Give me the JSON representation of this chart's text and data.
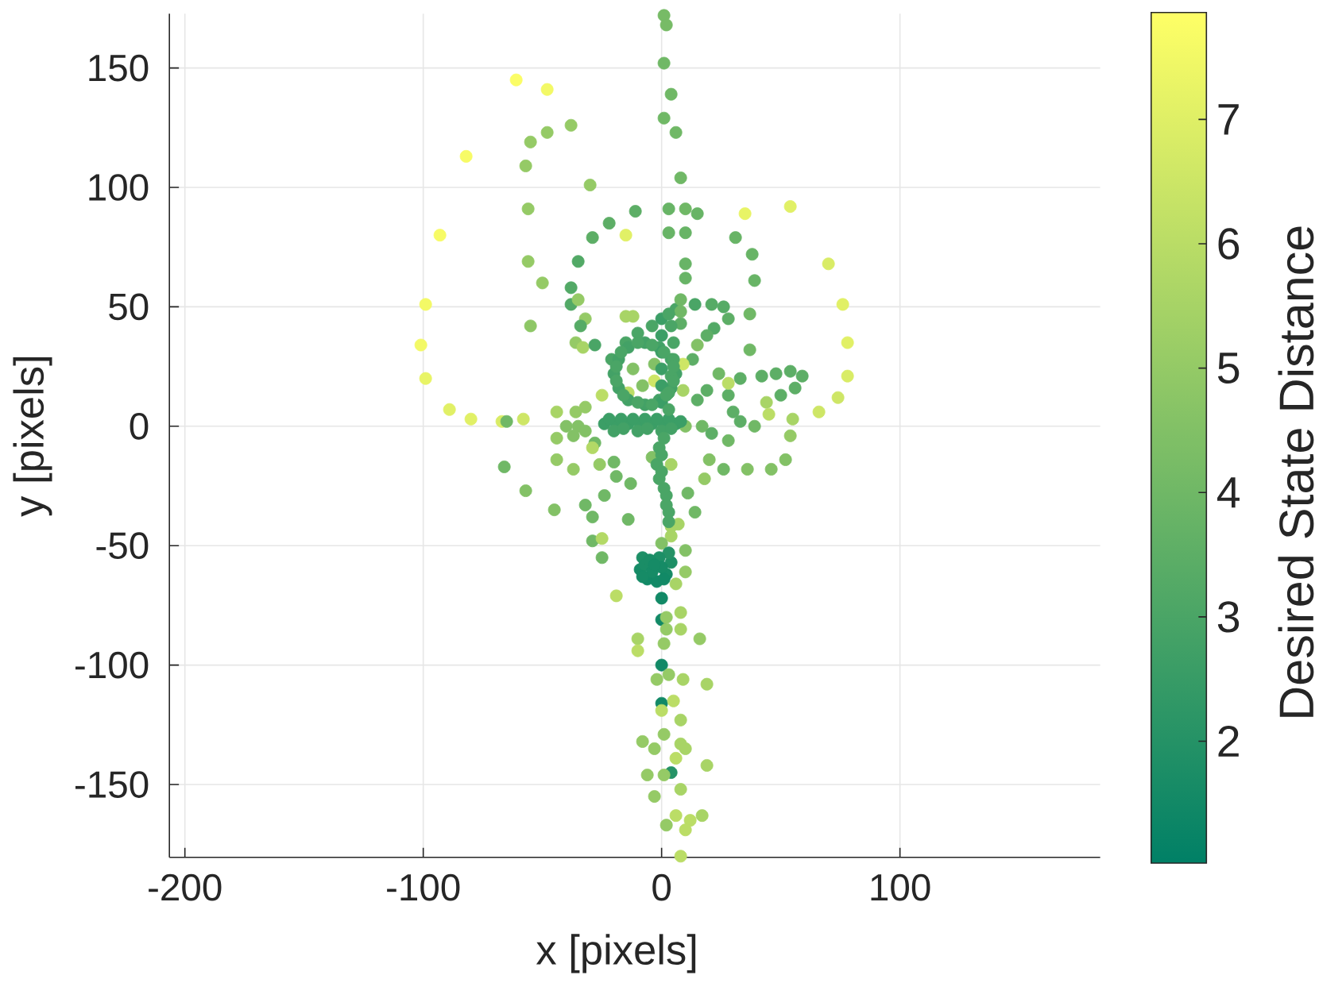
{
  "chart_data": {
    "type": "scatter",
    "xlabel": "x [pixels]",
    "ylabel": "y [pixels]",
    "clabel": "Desired State Distance",
    "xlim": [
      -206.5,
      184
    ],
    "ylim": [
      -180.5,
      172.7
    ],
    "xticks": [
      -200,
      -100,
      0,
      100
    ],
    "yticks": [
      -150,
      -100,
      -50,
      0,
      50,
      100,
      150
    ],
    "clim": [
      1.02,
      7.86
    ],
    "cticks": [
      2,
      3,
      4,
      5,
      6,
      7
    ],
    "grid": true,
    "marker": "circle",
    "x": [
      1,
      2,
      1,
      4,
      1,
      6,
      8,
      3,
      10,
      15,
      3,
      10,
      10,
      10,
      -61,
      -48,
      -82,
      -55,
      -48,
      -38,
      -57,
      -30,
      -56,
      -93,
      -56,
      -50,
      -55,
      -99,
      -101,
      -99,
      -89,
      -80,
      -67,
      -65,
      -58,
      -44,
      -36,
      -32,
      -25,
      -11,
      -22,
      -29,
      -15,
      -35,
      -38,
      -38,
      -35,
      -32,
      -34,
      -36,
      -33,
      -28,
      -15,
      -12,
      35,
      54,
      31,
      38,
      39,
      70,
      76,
      78,
      78,
      74,
      66,
      55,
      54,
      37,
      37,
      14,
      21,
      26,
      28,
      22,
      19,
      15,
      13,
      6,
      8,
      8,
      8,
      33,
      42,
      48,
      54,
      59,
      56,
      50,
      44,
      45,
      39,
      33,
      30,
      28,
      24,
      28,
      19,
      15,
      17,
      21,
      9,
      9,
      52,
      46,
      36,
      26,
      28,
      20,
      18,
      11,
      14,
      7,
      4,
      -13,
      -14,
      -19,
      -20,
      -24,
      -32,
      -29,
      -29,
      -25,
      -25,
      -45,
      -57,
      -66,
      -44,
      -37,
      -26,
      -28,
      -44,
      -29,
      -4,
      4,
      10,
      -40,
      -35,
      -32,
      -37,
      -14,
      -3,
      -21,
      -15,
      -10,
      -4,
      -12,
      -3,
      -8,
      6,
      4,
      -1,
      -7,
      -14,
      -18,
      -20,
      -18,
      -14,
      -7,
      -1,
      4,
      0,
      0,
      0,
      0,
      0,
      0,
      -24,
      -19,
      -14,
      -9,
      -4,
      1,
      6,
      -20,
      -10,
      0,
      -1,
      -2,
      -1,
      2,
      3,
      4,
      0,
      -19,
      -8,
      -9,
      -6,
      -2,
      2,
      4,
      3,
      -1,
      10,
      10,
      6,
      0,
      0,
      8,
      2,
      8,
      2,
      16,
      1,
      -10,
      -10,
      0,
      -2,
      3,
      9,
      19,
      0,
      5,
      0,
      8,
      1,
      -8,
      -3,
      8,
      10,
      6,
      19,
      -6,
      4,
      1,
      8,
      -3,
      6,
      12,
      17,
      10,
      2,
      8,
      -22,
      -17,
      -12,
      -7,
      -2,
      3,
      8,
      -16,
      -6,
      4,
      3,
      4,
      5,
      5,
      4,
      3,
      3,
      5,
      1,
      -4,
      -10,
      -17,
      -19,
      -19,
      -16,
      -10,
      -4,
      2,
      5,
      1,
      0,
      0,
      1,
      2,
      3,
      -7,
      -4,
      -5,
      0,
      -3,
      1,
      -8
    ],
    "values": [
      172,
      168,
      152,
      139,
      129,
      123,
      104,
      91,
      91,
      89,
      81,
      81,
      68,
      62,
      145,
      141,
      113,
      119,
      123,
      126,
      109,
      101,
      91,
      80,
      69,
      60,
      42,
      51,
      34,
      20,
      7,
      3,
      2,
      2,
      3,
      6,
      6,
      8,
      13,
      90,
      85,
      79,
      80,
      69,
      58,
      51,
      53,
      45,
      42,
      35,
      33,
      34,
      46,
      46,
      89,
      92,
      79,
      72,
      61,
      68,
      51,
      35,
      21,
      12,
      6,
      3,
      -4,
      47,
      32,
      51,
      51,
      50,
      45,
      41,
      38,
      34,
      28,
      49,
      53,
      43,
      48,
      20,
      21,
      22,
      23,
      21,
      16,
      13,
      10,
      5,
      0,
      2,
      6,
      13,
      22,
      18,
      15,
      11,
      0,
      -3,
      26,
      15,
      -14,
      -18,
      -18,
      -18,
      -6,
      -14,
      -22,
      -28,
      -36,
      -41,
      -42,
      -24,
      -39,
      -21,
      -15,
      -29,
      -33,
      -38,
      -48,
      -47,
      -55,
      -35,
      -27,
      -17,
      -14,
      -18,
      -16,
      -7,
      -5,
      -9,
      -13,
      -16,
      0,
      0,
      0,
      -2,
      -4,
      14,
      19,
      28,
      35,
      39,
      42,
      24,
      26,
      17,
      22,
      28,
      33,
      35,
      33,
      28,
      22,
      16,
      11,
      9,
      11,
      16,
      45,
      38,
      31,
      24,
      17,
      10,
      1,
      1,
      1,
      1,
      1,
      1,
      1,
      -2,
      -2,
      -2,
      -9,
      -16,
      -22,
      -29,
      -36,
      -46,
      -49,
      -71,
      -55,
      -60,
      -64,
      -65,
      -62,
      -57,
      -53,
      -55,
      -52,
      -61,
      -66,
      -72,
      -81,
      -78,
      -80,
      -85,
      -85,
      -89,
      -91,
      -89,
      -94,
      -100,
      -106,
      -104,
      -106,
      -108,
      -116,
      -115,
      -119,
      -123,
      -129,
      -132,
      -135,
      -133,
      -135,
      -139,
      -142,
      -146,
      -145,
      -146,
      -152,
      -155,
      -163,
      -165,
      -163,
      -169,
      -167,
      -180,
      3,
      3,
      3,
      3,
      3,
      3,
      2,
      -1,
      -1,
      -1,
      47,
      42,
      35,
      28,
      21,
      14,
      7,
      25,
      31,
      34,
      35,
      31,
      25,
      19,
      13,
      10,
      9,
      13,
      19,
      -5,
      -12,
      -19,
      -26,
      -33,
      -40,
      -58,
      -61,
      -56,
      -59,
      -58,
      -64,
      -63
    ],
    "cvalues": [
      4.2,
      4.2,
      4.0,
      4.0,
      4.0,
      4.0,
      4.0,
      3.8,
      4.0,
      3.8,
      3.8,
      3.8,
      3.8,
      3.8,
      7.7,
      7.5,
      7.6,
      5.0,
      5.0,
      5.0,
      5.0,
      5.0,
      5.0,
      7.6,
      5.0,
      5.0,
      4.8,
      7.5,
      7.5,
      7.2,
      7.0,
      7.0,
      6.8,
      4.0,
      6.5,
      5.5,
      5.0,
      5.0,
      6.0,
      3.5,
      3.5,
      3.5,
      7.0,
      3.2,
      3.2,
      3.2,
      5.0,
      5.0,
      3.3,
      5.0,
      5.5,
      3.0,
      5.5,
      5.5,
      7.2,
      7.0,
      3.8,
      3.8,
      3.8,
      6.8,
      7.0,
      7.0,
      6.8,
      6.5,
      6.5,
      5.5,
      5.0,
      4.0,
      4.0,
      3.0,
      3.3,
      3.3,
      3.5,
      3.2,
      3.5,
      4.5,
      3.5,
      3.0,
      4.0,
      3.5,
      4.0,
      3.5,
      3.5,
      3.5,
      3.5,
      3.5,
      3.5,
      3.5,
      5.5,
      6.0,
      4.0,
      3.5,
      3.5,
      3.5,
      4.0,
      6.0,
      3.5,
      3.5,
      4.0,
      3.5,
      6.5,
      5.5,
      4.5,
      4.5,
      4.5,
      4.0,
      4.0,
      4.5,
      5.0,
      4.0,
      4.0,
      5.5,
      5.5,
      4.0,
      4.0,
      4.0,
      4.0,
      4.0,
      4.0,
      4.0,
      4.0,
      5.8,
      4.0,
      4.5,
      4.5,
      4.0,
      5.0,
      5.0,
      5.0,
      4.0,
      5.0,
      5.8,
      4.5,
      5.5,
      4.5,
      4.5,
      4.5,
      4.5,
      4.5,
      6.0,
      6.5,
      3.0,
      3.0,
      3.0,
      3.0,
      4.5,
      4.5,
      4.5,
      2.8,
      2.8,
      2.8,
      2.8,
      2.8,
      2.8,
      2.8,
      2.8,
      2.8,
      2.8,
      2.8,
      2.8,
      2.6,
      2.6,
      2.6,
      2.6,
      2.6,
      2.6,
      2.6,
      2.6,
      2.6,
      2.6,
      2.6,
      2.6,
      2.6,
      2.8,
      2.8,
      2.8,
      3.0,
      3.0,
      3.0,
      3.0,
      3.0,
      5.5,
      4.5,
      6.0,
      1.8,
      1.6,
      1.5,
      1.5,
      1.6,
      1.8,
      2.0,
      1.8,
      4.5,
      5.0,
      5.5,
      1.5,
      1.5,
      5.5,
      5.0,
      5.5,
      5.0,
      5.0,
      5.0,
      5.5,
      6.0,
      1.5,
      5.0,
      5.0,
      5.5,
      5.5,
      1.5,
      6.0,
      6.0,
      5.5,
      5.0,
      5.0,
      5.0,
      5.5,
      5.5,
      6.0,
      5.5,
      5.0,
      2.0,
      5.0,
      5.5,
      5.0,
      6.0,
      6.0,
      5.5,
      6.0,
      5.0,
      6.0,
      2.6,
      2.6,
      2.6,
      2.6,
      2.6,
      2.6,
      2.6,
      2.8,
      2.8,
      2.8,
      3.0,
      3.0,
      3.0,
      3.0,
      3.0,
      3.0,
      3.0,
      3.0,
      3.0,
      3.0,
      3.0,
      3.0,
      3.0,
      3.0,
      3.0,
      3.0,
      3.0,
      3.0,
      3.0,
      3.0,
      3.0,
      3.0,
      3.0,
      3.0,
      3.0,
      1.7,
      1.6,
      1.7,
      1.6,
      1.6,
      1.5,
      1.6
    ]
  }
}
